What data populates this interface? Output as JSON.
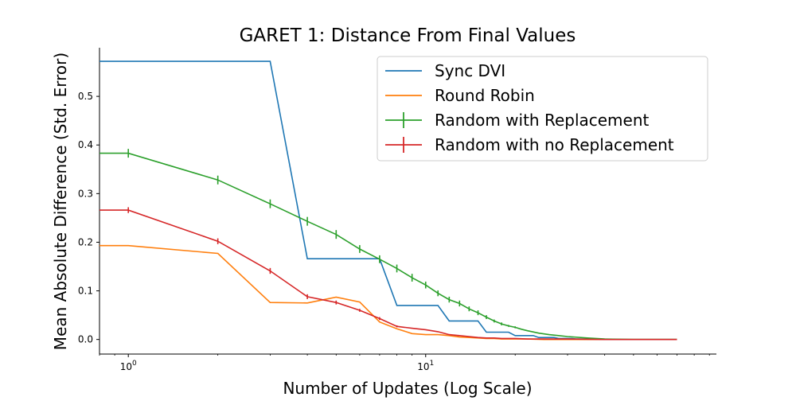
{
  "chart_data": {
    "type": "line",
    "title": "GARET 1: Distance From Final Values",
    "xlabel": "Number of Updates (Log Scale)",
    "ylabel": "Mean Absolute Difference (Std. Error)",
    "x_scale": "log",
    "xlim": [
      0.8,
      95
    ],
    "ylim": [
      -0.03,
      0.6
    ],
    "yticks": [
      0.0,
      0.1,
      0.2,
      0.3,
      0.4,
      0.5
    ],
    "ytick_labels": [
      "0.0",
      "0.1",
      "0.2",
      "0.3",
      "0.4",
      "0.5"
    ],
    "xticks": [
      1,
      10
    ],
    "xtick_labels": [
      {
        "base": "10",
        "exp": "0"
      },
      {
        "base": "10",
        "exp": "1"
      }
    ],
    "grid": false,
    "legend_position": "top-right",
    "series": [
      {
        "name": "Sync DVI",
        "color": "#1f77b4",
        "step": true,
        "x": [
          0.8,
          3,
          4,
          7,
          8,
          11,
          12,
          15,
          16,
          19,
          20,
          23,
          24,
          27,
          28,
          31,
          32,
          35,
          36,
          70
        ],
        "y": [
          0.572,
          0.572,
          0.166,
          0.166,
          0.07,
          0.07,
          0.038,
          0.038,
          0.015,
          0.015,
          0.008,
          0.008,
          0.004,
          0.004,
          0.002,
          0.002,
          0.001,
          0.001,
          0.0,
          0.0
        ]
      },
      {
        "name": "Round Robin",
        "color": "#ff7f0e",
        "x": [
          0.8,
          1,
          2,
          3,
          4,
          5,
          6,
          7,
          8,
          9,
          10,
          11,
          12,
          13,
          14,
          15,
          16,
          17,
          18,
          20,
          22,
          25,
          30,
          40,
          50,
          70
        ],
        "y": [
          0.193,
          0.193,
          0.177,
          0.076,
          0.075,
          0.087,
          0.077,
          0.036,
          0.022,
          0.012,
          0.01,
          0.01,
          0.008,
          0.005,
          0.004,
          0.003,
          0.002,
          0.002,
          0.001,
          0.001,
          0.001,
          0.0,
          0.0,
          0.0,
          0.0,
          0.0
        ]
      },
      {
        "name": "Random with Replacement",
        "color": "#2ca02c",
        "errorbars": true,
        "x": [
          0.8,
          1,
          2,
          3,
          4,
          5,
          6,
          7,
          8,
          9,
          10,
          11,
          12,
          13,
          14,
          15,
          16,
          17,
          18,
          19,
          20,
          21,
          22,
          24,
          26,
          28,
          30,
          35,
          40,
          50,
          70
        ],
        "y": [
          0.383,
          0.383,
          0.328,
          0.279,
          0.243,
          0.216,
          0.186,
          0.165,
          0.146,
          0.127,
          0.112,
          0.095,
          0.082,
          0.074,
          0.063,
          0.055,
          0.046,
          0.038,
          0.032,
          0.028,
          0.025,
          0.021,
          0.018,
          0.013,
          0.01,
          0.008,
          0.006,
          0.003,
          0.001,
          0.0,
          0.0
        ],
        "err": [
          0,
          0.009,
          0.009,
          0.009,
          0.009,
          0.009,
          0.008,
          0.008,
          0.008,
          0.008,
          0.007,
          0.006,
          0.006,
          0.006,
          0.005,
          0.005,
          0.004,
          0.003,
          0.003,
          0.002,
          0.002,
          0,
          0,
          0,
          0,
          0,
          0,
          0,
          0,
          0,
          0
        ]
      },
      {
        "name": "Random with no Replacement",
        "color": "#d62728",
        "errorbars": true,
        "x": [
          0.8,
          1,
          2,
          3,
          4,
          5,
          6,
          7,
          8,
          9,
          10,
          11,
          12,
          13,
          14,
          15,
          16,
          17,
          18,
          20,
          22,
          25,
          30,
          40,
          50,
          70
        ],
        "y": [
          0.266,
          0.266,
          0.202,
          0.141,
          0.088,
          0.076,
          0.06,
          0.043,
          0.027,
          0.023,
          0.02,
          0.016,
          0.01,
          0.008,
          0.006,
          0.004,
          0.003,
          0.003,
          0.002,
          0.002,
          0.001,
          0.001,
          0.001,
          0.0,
          0.0,
          0.0
        ],
        "err": [
          0,
          0.006,
          0.006,
          0.006,
          0.005,
          0.004,
          0.003,
          0.003,
          0.002,
          0,
          0,
          0,
          0,
          0,
          0,
          0,
          0,
          0,
          0,
          0,
          0,
          0,
          0,
          0,
          0,
          0
        ]
      }
    ]
  }
}
